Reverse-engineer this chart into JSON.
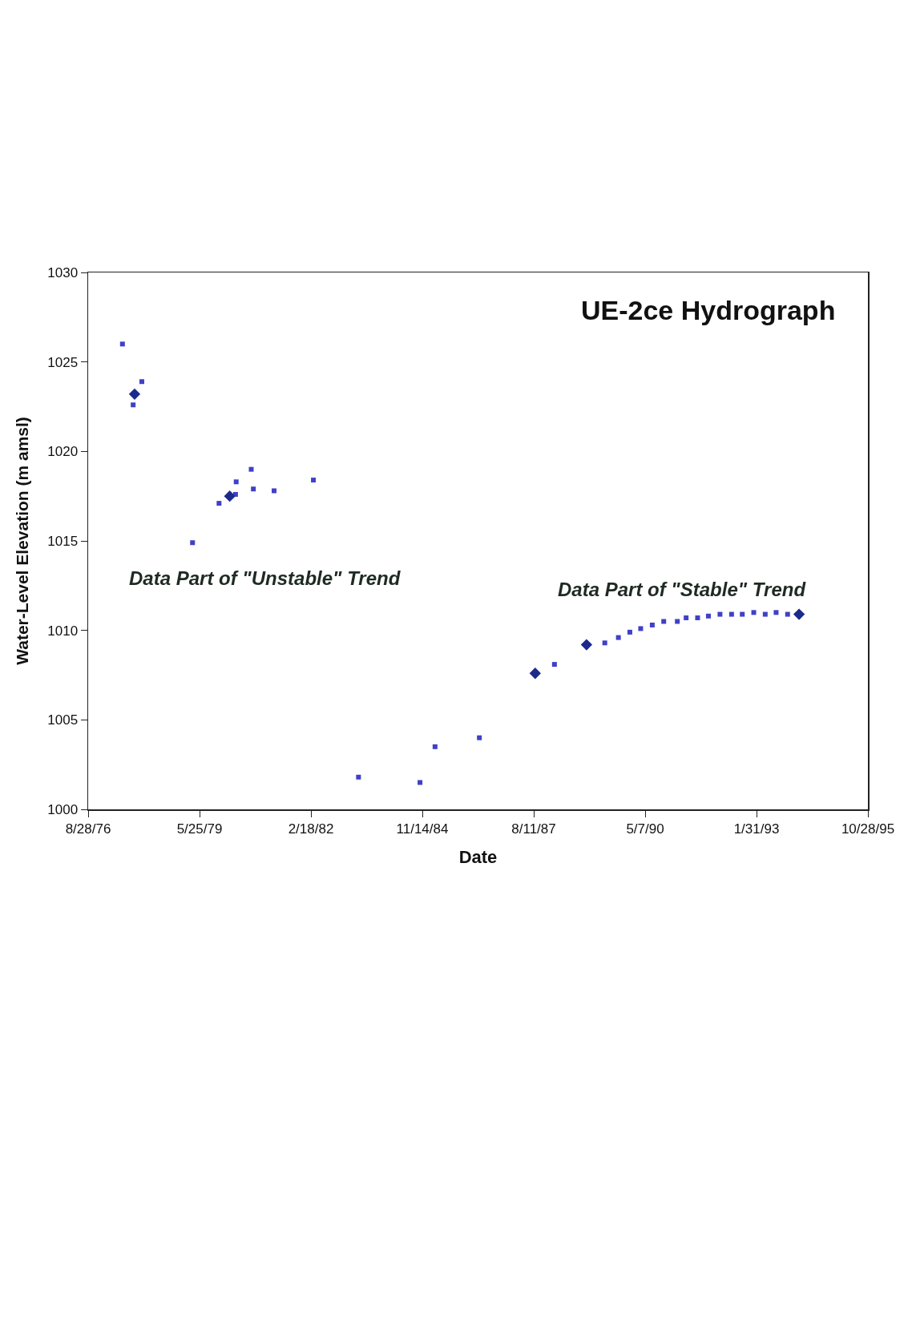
{
  "chart_data": {
    "type": "scatter",
    "title": "UE-2ce Hydrograph",
    "xlabel": "Date",
    "ylabel": "Water-Level Elevation (m amsl)",
    "xlim": [
      "1976-08-28",
      "1995-10-28"
    ],
    "xticks": [
      {
        "value": "1976-08-28",
        "label": "8/28/76"
      },
      {
        "value": "1979-05-25",
        "label": "5/25/79"
      },
      {
        "value": "1982-02-18",
        "label": "2/18/82"
      },
      {
        "value": "1984-11-14",
        "label": "11/14/84"
      },
      {
        "value": "1987-08-11",
        "label": "8/11/87"
      },
      {
        "value": "1990-05-07",
        "label": "5/7/90"
      },
      {
        "value": "1993-01-31",
        "label": "1/31/93"
      },
      {
        "value": "1995-10-28",
        "label": "10/28/95"
      }
    ],
    "ylim": [
      1000,
      1030
    ],
    "yticks": [
      1000,
      1005,
      1010,
      1015,
      1020,
      1025,
      1030
    ],
    "grid": false,
    "series": [
      {
        "marker": "square",
        "color": "#4040c8",
        "x": [
          "1977-07-02",
          "1977-10-06",
          "1977-12-23",
          "1979-03-23",
          "1979-11-16",
          "1980-04-12",
          "1980-04-18",
          "1980-08-31",
          "1980-09-19",
          "1981-03-24",
          "1982-03-12",
          "1983-04-21",
          "1984-10-24",
          "1985-03-08",
          "1986-04-10",
          "1988-02-13",
          "1989-05-10",
          "1989-09-09",
          "1989-12-21",
          "1990-03-28",
          "1990-07-10",
          "1990-10-21",
          "1991-02-20",
          "1991-05-10",
          "1991-08-21",
          "1991-11-26",
          "1992-03-09",
          "1992-06-21",
          "1992-09-25",
          "1993-01-06",
          "1993-04-19",
          "1993-07-26",
          "1993-11-06"
        ],
        "values": [
          1026.0,
          1022.6,
          1023.9,
          1014.9,
          1017.1,
          1017.6,
          1018.3,
          1019.0,
          1017.9,
          1017.8,
          1018.4,
          1001.8,
          1001.5,
          1003.5,
          1004.0,
          1008.1,
          1009.3,
          1009.6,
          1009.9,
          1010.1,
          1010.3,
          1010.5,
          1010.5,
          1010.7,
          1010.7,
          1010.8,
          1010.9,
          1010.9,
          1010.9,
          1011.0,
          1010.9,
          1011.0,
          1010.9
        ]
      },
      {
        "marker": "diamond",
        "color": "#1c2a8c",
        "x": [
          "1977-10-19",
          "1980-02-20",
          "1987-08-24",
          "1988-11-27",
          "1994-02-17"
        ],
        "values": [
          1023.2,
          1017.5,
          1007.6,
          1009.2,
          1010.9
        ]
      }
    ],
    "annotations": [
      "Data Part of \"Unstable\" Trend",
      "Data Part of \"Stable\" Trend"
    ]
  }
}
